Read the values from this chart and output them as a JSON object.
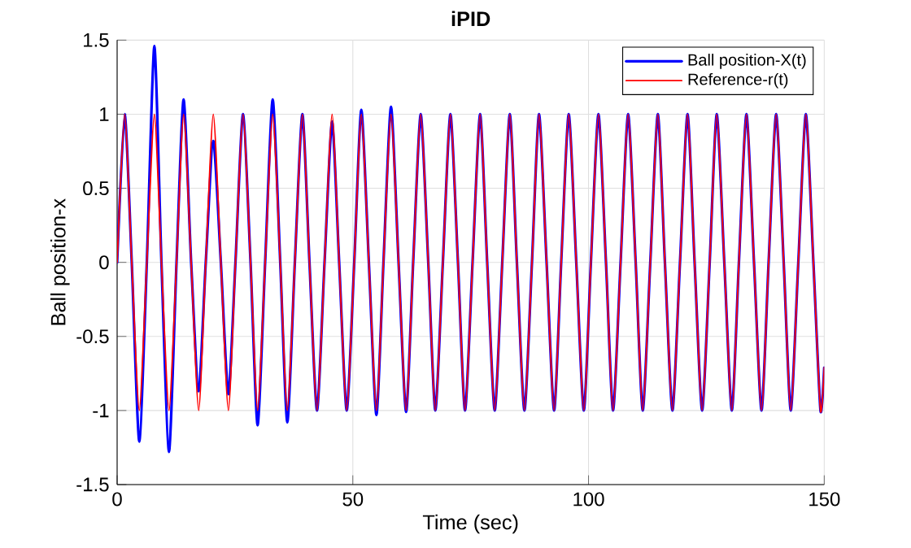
{
  "chart_data": {
    "type": "line",
    "title": "iPID",
    "xlabel": "Time (sec)",
    "ylabel": "Ball position-x",
    "x": [
      0,
      1.6,
      3.1,
      4.7,
      6.3,
      7.9,
      9.4,
      11.0,
      12.6,
      14.1,
      15.7,
      17.3,
      18.8,
      20.4,
      22.0,
      23.6,
      25.1,
      26.7,
      28.3,
      29.8,
      31.4,
      33.0,
      34.6,
      36.1,
      37.7,
      39.3,
      40.8,
      42.4,
      44.0,
      45.6,
      47.1,
      48.7,
      50.3,
      51.8,
      53.4,
      55.0,
      56.5,
      58.1,
      59.7,
      61.3,
      62.8,
      64.4,
      66.0,
      67.5,
      69.1,
      70.7,
      72.3,
      73.8,
      75.4,
      77.0,
      78.5,
      80.1,
      81.7,
      83.3,
      84.8,
      86.4,
      88.0,
      89.5,
      91.1,
      92.7,
      94.2,
      95.8,
      97.4,
      99.0,
      100.5,
      102.1,
      103.7,
      105.2,
      106.8,
      108.4,
      110.0,
      111.5,
      113.1,
      114.7,
      116.2,
      117.8,
      119.4,
      121.0,
      122.5,
      124.1,
      125.7,
      127.2,
      128.8,
      130.4,
      131.9,
      133.5,
      135.1,
      136.7,
      138.2,
      139.8,
      141.4,
      142.9,
      144.5,
      146.1,
      147.7,
      149.2,
      150
    ],
    "series": [
      {
        "name": "Ball position-X(t)",
        "color": "#0000ff",
        "values": [
          0,
          1,
          0,
          -1.21,
          0,
          1.46,
          0,
          -1.28,
          0,
          1.1,
          0,
          -0.87,
          0,
          0.82,
          0,
          -0.89,
          0,
          1,
          0,
          -1.1,
          0,
          1.1,
          0,
          -1.08,
          0,
          1,
          0,
          -1,
          0,
          0.95,
          0,
          -1,
          0,
          1.03,
          0,
          -1.03,
          0,
          1.05,
          0,
          -1.01,
          0,
          1,
          0,
          -1,
          0,
          1,
          0,
          -1,
          0,
          1,
          0,
          -1,
          0,
          1,
          0,
          -1,
          0,
          1,
          0,
          -1,
          0,
          1,
          0,
          -1,
          0,
          1,
          0,
          -1,
          0,
          1,
          0,
          -1,
          0,
          1,
          0,
          -1,
          0,
          1,
          0,
          -1,
          0,
          1,
          0,
          -1,
          0,
          1,
          0,
          -1,
          0,
          1,
          0,
          -1,
          0,
          1,
          0,
          -1,
          -0.71
        ]
      },
      {
        "name": "Reference-r(t)",
        "color": "#ff0000",
        "values": [
          0,
          1,
          0,
          -1,
          0,
          1,
          0,
          -1,
          0,
          1,
          0,
          -1,
          0,
          1,
          0,
          -1,
          0,
          1,
          0,
          -1,
          0,
          1,
          0,
          -1,
          0,
          1,
          0,
          -1,
          0,
          1,
          0,
          -1,
          0,
          1,
          0,
          -1,
          0,
          1,
          0,
          -1,
          0,
          1,
          0,
          -1,
          0,
          1,
          0,
          -1,
          0,
          1,
          0,
          -1,
          0,
          1,
          0,
          -1,
          0,
          1,
          0,
          -1,
          0,
          1,
          0,
          -1,
          0,
          1,
          0,
          -1,
          0,
          1,
          0,
          -1,
          0,
          1,
          0,
          -1,
          0,
          1,
          0,
          -1,
          0,
          1,
          0,
          -1,
          0,
          1,
          0,
          -1,
          0,
          1,
          0,
          -1,
          0,
          1,
          0,
          -1,
          -0.71
        ]
      }
    ],
    "xlim": [
      0,
      150
    ],
    "ylim": [
      -1.5,
      1.5
    ],
    "xticks": [
      0,
      50,
      100,
      150
    ],
    "yticks": [
      -1.5,
      -1,
      -0.5,
      0,
      0.5,
      1,
      1.5
    ],
    "grid": true,
    "legend": "top right",
    "marker": "none",
    "line_style": "solid"
  }
}
